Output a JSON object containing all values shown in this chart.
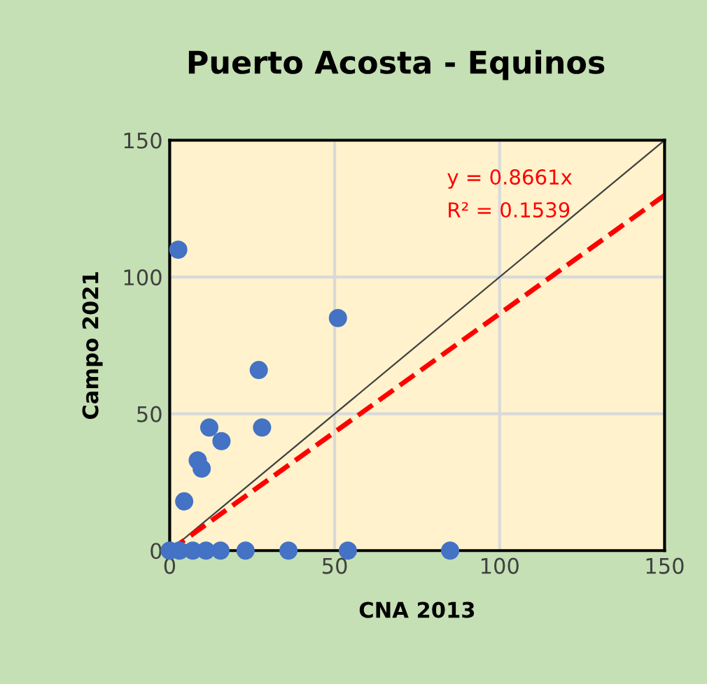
{
  "chart_data": {
    "type": "scatter",
    "title": "Puerto Acosta - Equinos",
    "xlabel": "CNA 2013",
    "ylabel": "Campo 2021",
    "xlim": [
      0,
      150
    ],
    "ylim": [
      0,
      150
    ],
    "xticks": [
      0,
      50,
      100,
      150
    ],
    "yticks": [
      0,
      50,
      100,
      150
    ],
    "grid": true,
    "marker": "circle",
    "series": [
      {
        "color": "#4472c4",
        "x": [
          2.6,
          51,
          27,
          28,
          12,
          15.7,
          8.5,
          9.7,
          4.4,
          0,
          3,
          7,
          11,
          15.4,
          23,
          36,
          54,
          85
        ],
        "values": [
          110,
          85,
          66,
          45,
          45,
          40,
          33,
          30,
          18,
          0,
          0,
          0,
          0,
          0,
          0,
          0,
          0,
          0
        ]
      },
      {
        "type": "line",
        "marker": "none",
        "color": "#404040",
        "line_style": "solid",
        "x": [
          0,
          150
        ],
        "values": [
          0,
          150
        ]
      },
      {
        "type": "line",
        "marker": "none",
        "color": "#ff0000",
        "line_style": "dashed",
        "x": [
          0,
          150
        ],
        "values": [
          0,
          129.9
        ]
      }
    ],
    "annotations": [
      "y = 0.8661x",
      "R² = 0.1539"
    ]
  }
}
